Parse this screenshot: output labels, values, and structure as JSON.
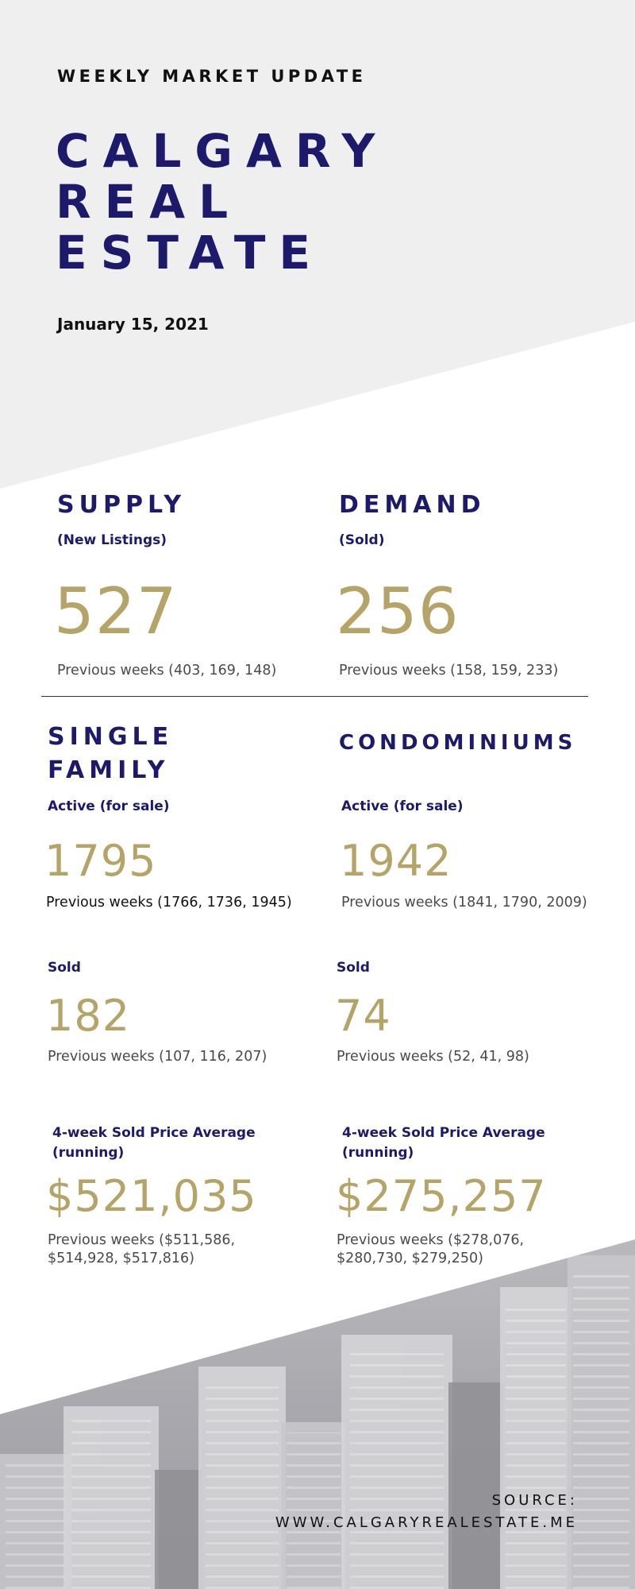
{
  "header": {
    "eyebrow": "WEEKLY MARKET UPDATE",
    "title_lines": [
      "CALGARY",
      "REAL",
      "ESTATE"
    ],
    "date": "January 15, 2021"
  },
  "supply": {
    "heading": "SUPPLY",
    "subheading": "(New Listings)",
    "value": "527",
    "previous": "Previous weeks (403, 169, 148)"
  },
  "demand": {
    "heading": "DEMAND",
    "subheading": "(Sold)",
    "value": "256",
    "previous": "Previous weeks (158, 159, 233)"
  },
  "single_family": {
    "heading_lines": [
      "SINGLE",
      "FAMILY"
    ],
    "active_label": "Active (for sale)",
    "active_value": "1795",
    "active_previous": "Previous weeks (1766, 1736, 1945)",
    "sold_label": "Sold",
    "sold_value": "182",
    "sold_previous": "Previous weeks (107, 116, 207)",
    "avg_label_lines": [
      "4-week Sold Price Average",
      "(running)"
    ],
    "avg_value": "$521,035",
    "avg_previous_lines": [
      "Previous weeks ($511,586,",
      "$514,928, $517,816)"
    ]
  },
  "condominiums": {
    "heading": "CONDOMINIUMS",
    "active_label": "Active (for sale)",
    "active_value": "1942",
    "active_previous": "Previous weeks (1841, 1790, 2009)",
    "sold_label": "Sold",
    "sold_value": "74",
    "sold_previous": "Previous weeks (52, 41, 98)",
    "avg_label_lines": [
      "4-week Sold Price Average",
      "(running)"
    ],
    "avg_value": "$275,257",
    "avg_previous_lines": [
      "Previous weeks ($278,076,",
      "$280,730, $279,250)"
    ]
  },
  "footer": {
    "source_label": "SOURCE:",
    "source_url": "WWW.CALGARYREALESTATE.ME"
  },
  "colors": {
    "navy": "#1e1a6b",
    "gold": "#b5a467",
    "top_background": "#efeff0"
  }
}
